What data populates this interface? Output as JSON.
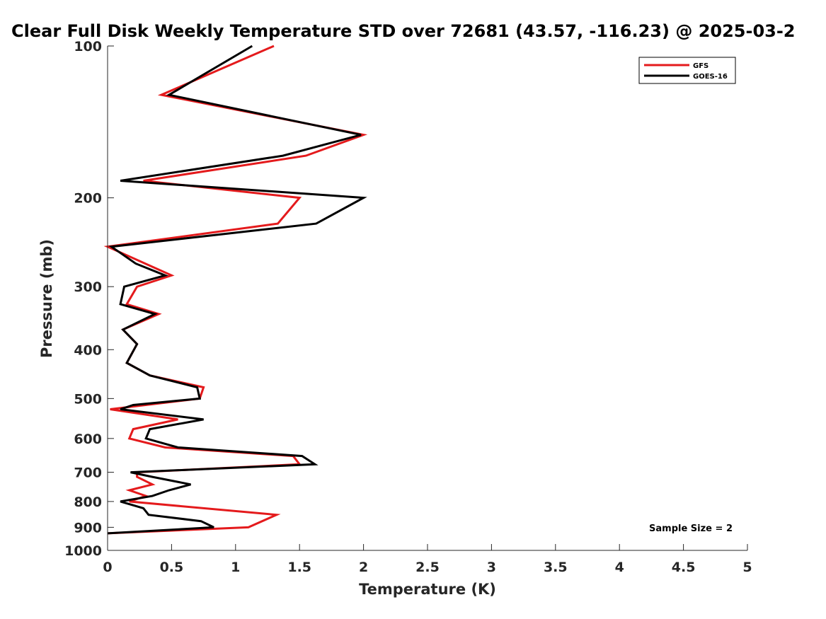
{
  "chart_data": {
    "type": "line",
    "title": "Clear Full Disk Weekly Temperature STD over 72681 (43.57, -116.23) @ 2025-03-2",
    "xlabel": "Temperature (K)",
    "ylabel": "Pressure (mb)",
    "xlim": [
      0,
      5
    ],
    "ylim": [
      1000,
      100
    ],
    "yscale": "log",
    "y_reversed": true,
    "grid": false,
    "x_ticks": [
      0,
      0.5,
      1,
      1.5,
      2,
      2.5,
      3,
      3.5,
      4,
      4.5,
      5
    ],
    "x_tick_labels": [
      "0",
      "0.5",
      "1",
      "1.5",
      "2",
      "2.5",
      "3",
      "3.5",
      "4",
      "4.5",
      "5"
    ],
    "y_ticks": [
      100,
      200,
      300,
      400,
      500,
      600,
      700,
      800,
      900,
      1000
    ],
    "y_tick_labels": [
      "100",
      "200",
      "300",
      "400",
      "500",
      "600",
      "700",
      "800",
      "900",
      "1000"
    ],
    "legend_position": "top-right",
    "annotation": "Sample Size = 2",
    "series": [
      {
        "name": "GFS",
        "color": "#e41a1c",
        "points": [
          [
            1.3,
            100
          ],
          [
            0.42,
            125
          ],
          [
            2.0,
            150
          ],
          [
            1.55,
            165
          ],
          [
            0.28,
            185
          ],
          [
            1.5,
            200
          ],
          [
            1.33,
            225
          ],
          [
            0.0,
            250
          ],
          [
            0.5,
            285
          ],
          [
            0.23,
            300
          ],
          [
            0.15,
            325
          ],
          [
            0.4,
            340
          ],
          [
            0.12,
            365
          ],
          [
            0.23,
            390
          ],
          [
            0.15,
            425
          ],
          [
            0.33,
            450
          ],
          [
            0.75,
            475
          ],
          [
            0.72,
            500
          ],
          [
            0.02,
            525
          ],
          [
            0.55,
            550
          ],
          [
            0.2,
            575
          ],
          [
            0.17,
            600
          ],
          [
            0.45,
            625
          ],
          [
            1.45,
            650
          ],
          [
            1.5,
            675
          ],
          [
            0.23,
            700
          ],
          [
            0.23,
            715
          ],
          [
            0.35,
            740
          ],
          [
            0.17,
            760
          ],
          [
            0.3,
            780
          ],
          [
            0.17,
            800
          ],
          [
            1.32,
            850
          ],
          [
            1.1,
            900
          ],
          [
            0.0,
            925
          ]
        ]
      },
      {
        "name": "GOES-16",
        "color": "#000000",
        "points": [
          [
            1.13,
            100
          ],
          [
            0.48,
            125
          ],
          [
            1.98,
            150
          ],
          [
            1.37,
            165
          ],
          [
            0.1,
            185
          ],
          [
            2.0,
            200
          ],
          [
            1.63,
            225
          ],
          [
            0.03,
            250
          ],
          [
            0.22,
            270
          ],
          [
            0.45,
            285
          ],
          [
            0.13,
            300
          ],
          [
            0.1,
            325
          ],
          [
            0.37,
            340
          ],
          [
            0.12,
            365
          ],
          [
            0.23,
            390
          ],
          [
            0.15,
            425
          ],
          [
            0.33,
            450
          ],
          [
            0.7,
            475
          ],
          [
            0.72,
            500
          ],
          [
            0.2,
            515
          ],
          [
            0.1,
            525
          ],
          [
            0.75,
            550
          ],
          [
            0.33,
            575
          ],
          [
            0.3,
            600
          ],
          [
            0.55,
            625
          ],
          [
            1.52,
            650
          ],
          [
            1.62,
            675
          ],
          [
            0.18,
            700
          ],
          [
            0.35,
            715
          ],
          [
            0.65,
            740
          ],
          [
            0.48,
            760
          ],
          [
            0.35,
            780
          ],
          [
            0.1,
            800
          ],
          [
            0.28,
            825
          ],
          [
            0.32,
            850
          ],
          [
            0.73,
            875
          ],
          [
            0.83,
            900
          ],
          [
            0.0,
            925
          ]
        ]
      }
    ]
  }
}
